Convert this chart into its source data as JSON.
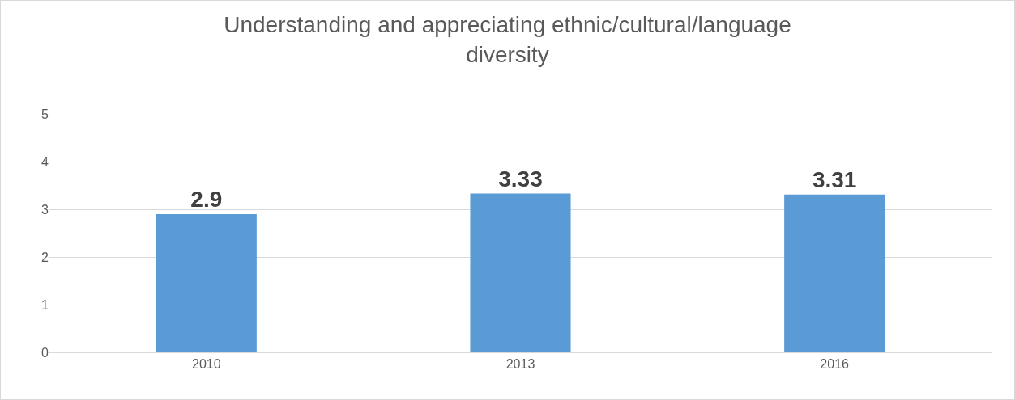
{
  "chart_data": {
    "type": "bar",
    "title": "Understanding and appreciating ethnic/cultural/language diversity",
    "categories": [
      "2010",
      "2013",
      "2016"
    ],
    "values": [
      2.9,
      3.33,
      3.31
    ],
    "color": "#5b9bd5",
    "ylim": [
      0,
      5
    ],
    "yticks": [
      0,
      1,
      2,
      3,
      4,
      5
    ],
    "grid": "y",
    "data_labels": true,
    "legend": false
  }
}
